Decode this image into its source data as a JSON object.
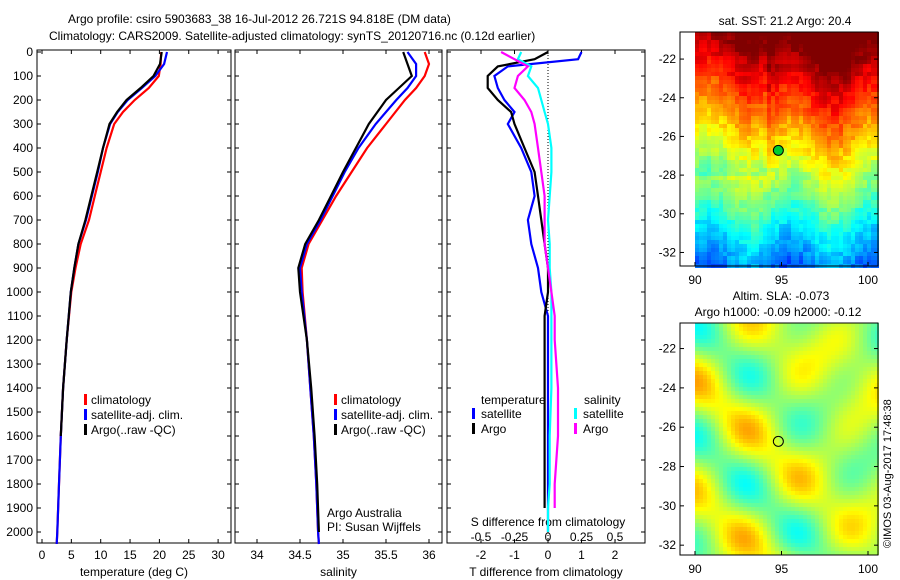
{
  "title_line1": "Argo profile: csiro 5903683_38 16-Jul-2012 26.721S 94.818E (DM data)",
  "title_line2": "Climatology: CARS2009. Satellite-adjusted climatology: synTS_20120716.nc (0.12d earlier)",
  "credit": "©IMOS 03-Aug-2017 17:48:38",
  "chart_data": [
    {
      "type": "line",
      "id": "temperature",
      "xlabel": "temperature (deg C)",
      "ylabel": "",
      "xlim": [
        -1,
        31.5
      ],
      "ylim": [
        2050,
        0
      ],
      "xticks": [
        0,
        5,
        10,
        15,
        20,
        25,
        30
      ],
      "yticks": [
        0,
        100,
        200,
        300,
        400,
        500,
        600,
        700,
        800,
        900,
        1000,
        1100,
        1200,
        1300,
        1400,
        1500,
        1600,
        1700,
        1800,
        1900,
        2000
      ],
      "legend": [
        "climatology",
        "satellite-adj. clim.",
        "Argo(..raw -QC)"
      ],
      "depth": [
        0,
        50,
        100,
        150,
        200,
        250,
        300,
        400,
        500,
        600,
        700,
        800,
        900,
        1000,
        1200,
        1400,
        1600,
        1800,
        2000,
        2050
      ],
      "series": [
        {
          "name": "climatology",
          "color": "#ff0000",
          "values": [
            20.3,
            20.2,
            19.9,
            18.2,
            15.8,
            13.8,
            12.3,
            11.0,
            10.0,
            9.0,
            8.0,
            6.6,
            5.7,
            5.0,
            4.2,
            3.6,
            3.2,
            2.9,
            2.6,
            2.5
          ]
        },
        {
          "name": "satellite-adj. clim.",
          "color": "#0000ff",
          "values": [
            21.3,
            20.8,
            19.3,
            17.0,
            14.6,
            12.9,
            11.6,
            10.4,
            9.5,
            8.5,
            7.5,
            6.2,
            5.5,
            4.9,
            4.2,
            3.6,
            3.2,
            2.9,
            2.6,
            2.5
          ]
        },
        {
          "name": "Argo(..raw -QC)",
          "color": "#000000",
          "values": [
            20.4,
            20.1,
            19.0,
            16.8,
            14.4,
            12.8,
            11.5,
            10.4,
            9.4,
            8.4,
            7.4,
            6.2,
            5.5,
            4.9,
            4.2,
            3.6,
            3.2,
            null,
            null,
            null
          ]
        }
      ],
      "annotation": ""
    },
    {
      "type": "line",
      "id": "salinity",
      "xlabel": "salinity",
      "xlim": [
        33.75,
        36.1
      ],
      "ylim": [
        2050,
        0
      ],
      "xticks": [
        34,
        34.5,
        35,
        35.5,
        36
      ],
      "legend": [
        "climatology",
        "satellite-adj. clim.",
        "Argo(..raw -QC)"
      ],
      "depth": [
        0,
        50,
        100,
        150,
        200,
        300,
        400,
        500,
        600,
        700,
        800,
        900,
        1000,
        1200,
        1400,
        1600,
        1800,
        2000,
        2050
      ],
      "series": [
        {
          "name": "climatology",
          "color": "#ff0000",
          "values": [
            35.95,
            36.0,
            35.95,
            35.85,
            35.72,
            35.5,
            35.28,
            35.1,
            34.92,
            34.76,
            34.6,
            34.52,
            34.53,
            34.58,
            34.62,
            34.66,
            34.69,
            34.71,
            34.72
          ]
        },
        {
          "name": "satellite-adj. clim.",
          "color": "#0000ff",
          "values": [
            35.75,
            35.85,
            35.85,
            35.75,
            35.62,
            35.38,
            35.18,
            35.02,
            34.88,
            34.74,
            34.58,
            34.5,
            34.52,
            34.58,
            34.62,
            34.66,
            34.69,
            34.71,
            34.72
          ]
        },
        {
          "name": "Argo(..raw -QC)",
          "color": "#000000",
          "values": [
            35.7,
            35.75,
            35.8,
            35.65,
            35.5,
            35.3,
            35.15,
            35.0,
            34.86,
            34.72,
            34.56,
            34.48,
            34.5,
            34.58,
            34.63,
            34.67,
            34.7,
            34.72,
            null
          ]
        }
      ],
      "annotation_line1": "Argo Australia",
      "annotation_line2": "PI: Susan Wijffels"
    },
    {
      "type": "line",
      "id": "difference",
      "xlabel": "T difference from climatology",
      "xlabel_top": "S difference from climatology",
      "xlim": [
        -3,
        3
      ],
      "ylim": [
        2050,
        0
      ],
      "xticks": [
        -2,
        -1,
        0,
        1,
        2
      ],
      "xticks_top": [
        "-0.5",
        "-0.25",
        "0",
        "0.25",
        "0.5"
      ],
      "legend_temperature_title": "temperature",
      "legend_salinity_title": "salinity",
      "legend": [
        "satellite",
        "Argo",
        "satellite",
        "Argo"
      ],
      "depth": [
        0,
        30,
        60,
        100,
        150,
        200,
        250,
        300,
        400,
        500,
        600,
        700,
        800,
        900,
        1000,
        1100,
        1200,
        1400,
        1600,
        1800,
        1900,
        2000
      ],
      "series": [
        {
          "name": "temperature satellite",
          "color": "#0000ff",
          "values": [
            1.0,
            0.9,
            -1.2,
            -1.6,
            -1.5,
            -1.3,
            -1.0,
            -1.2,
            -0.8,
            -0.5,
            -0.4,
            -0.6,
            -0.5,
            -0.3,
            -0.2,
            0,
            0,
            0,
            0,
            0,
            0,
            0
          ]
        },
        {
          "name": "temperature Argo",
          "color": "#000000",
          "values": [
            0.0,
            -0.4,
            -1.5,
            -1.8,
            -1.8,
            -1.5,
            -1.1,
            -1.0,
            -0.7,
            -0.4,
            -0.3,
            -0.2,
            -0.1,
            0,
            0,
            -0.1,
            -0.1,
            -0.1,
            -0.1,
            -0.1,
            -0.1,
            null
          ]
        },
        {
          "name": "salinity satellite",
          "color": "#00ffff",
          "values": [
            -0.8,
            -0.9,
            -0.5,
            -0.6,
            -0.3,
            -0.2,
            -0.1,
            0,
            0.1,
            0.1,
            0.05,
            0.0,
            0.05,
            0.05,
            0.1,
            0.1,
            0.1,
            0.1,
            0.05,
            0.05,
            0,
            0
          ]
        },
        {
          "name": "salinity Argo",
          "color": "#ff00ff",
          "values": [
            -1.4,
            -1.0,
            -0.6,
            -0.9,
            -1.0,
            -0.7,
            -0.5,
            -0.4,
            -0.3,
            -0.2,
            -0.1,
            -0.1,
            -0.1,
            0,
            0.1,
            0.2,
            0.2,
            0.3,
            0.3,
            0.2,
            0.2,
            null
          ]
        }
      ]
    },
    {
      "type": "heatmap",
      "id": "sst-map",
      "title": "sat. SST: 21.2 Argo: 20.4",
      "xlim": [
        89.5,
        100.5
      ],
      "ylim": [
        -32.7,
        -20.6
      ],
      "xticks": [
        90,
        95,
        100
      ],
      "yticks": [
        -22,
        -24,
        -26,
        -28,
        -30,
        -32
      ],
      "marker": [
        94.818,
        -26.721
      ]
    },
    {
      "type": "heatmap",
      "id": "sla-map",
      "title_line1": "Altim. SLA: -0.073",
      "title_line2": "Argo h1000: -0.09 h2000: -0.12",
      "xlim": [
        89.5,
        100.5
      ],
      "ylim": [
        -32.5,
        -20.7
      ],
      "xticks": [
        90,
        95,
        100
      ],
      "yticks": [
        -22,
        -24,
        -26,
        -28,
        -30,
        -32
      ],
      "marker": [
        94.818,
        -26.721
      ]
    }
  ]
}
